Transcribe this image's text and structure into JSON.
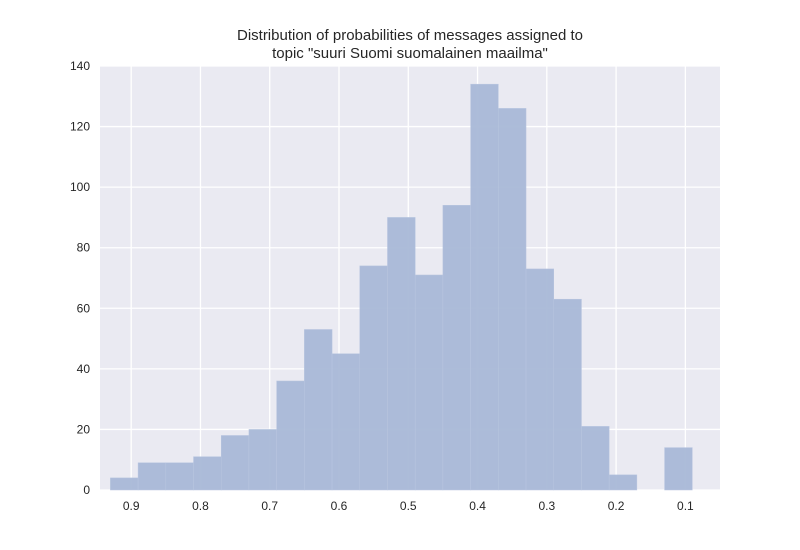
{
  "chart_data": {
    "type": "bar",
    "title_lines": [
      "Distribution of probabilities of messages assigned to",
      "topic \"suuri Suomi suomalainen maailma\""
    ],
    "xlabel": "",
    "ylabel": "",
    "x_axis_inverted": true,
    "xlim": [
      0.945,
      0.05
    ],
    "ylim": [
      0,
      140
    ],
    "x_ticks": [
      0.9,
      0.8,
      0.7,
      0.6,
      0.5,
      0.4,
      0.3,
      0.2,
      0.1
    ],
    "x_tick_labels": [
      "0.9",
      "0.8",
      "0.7",
      "0.6",
      "0.5",
      "0.4",
      "0.3",
      "0.2",
      "0.1"
    ],
    "y_ticks": [
      0,
      20,
      40,
      60,
      80,
      100,
      120,
      140
    ],
    "y_tick_labels": [
      "0",
      "20",
      "40",
      "60",
      "80",
      "100",
      "120",
      "140"
    ],
    "grid": true,
    "bin_edges": [
      0.93,
      0.89,
      0.85,
      0.81,
      0.77,
      0.73,
      0.69,
      0.65,
      0.61,
      0.57,
      0.53,
      0.49,
      0.45,
      0.41,
      0.37,
      0.33,
      0.29,
      0.25,
      0.21,
      0.17,
      0.13,
      0.09
    ],
    "values": [
      4,
      9,
      9,
      11,
      18,
      20,
      36,
      53,
      45,
      74,
      90,
      71,
      94,
      134,
      126,
      73,
      63,
      21,
      5,
      0,
      14
    ],
    "colors": {
      "background": "#eaeaf2",
      "grid": "#ffffff",
      "bar": "#a9b8d7",
      "bar_edge": "#b9c6e0",
      "text": "#262626"
    }
  }
}
